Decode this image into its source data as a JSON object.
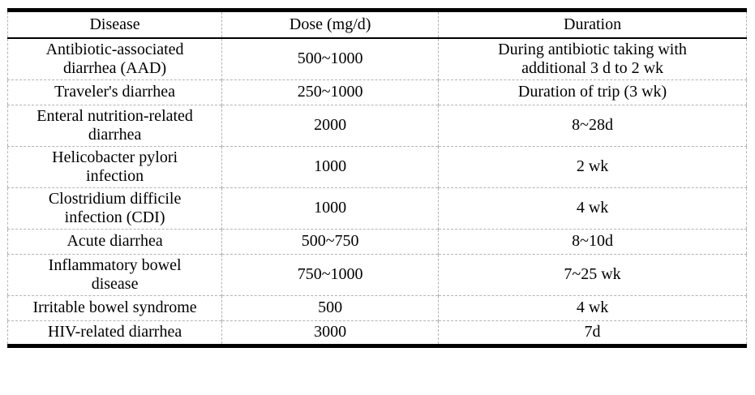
{
  "table": {
    "columns": [
      {
        "key": "disease",
        "label": "Disease"
      },
      {
        "key": "dose",
        "label": "Dose (mg/d)"
      },
      {
        "key": "duration",
        "label": "Duration"
      }
    ],
    "rows": [
      {
        "disease": "Antibiotic-associated\ndiarrhea (AAD)",
        "dose": "500~1000",
        "duration": "During antibiotic taking with\nadditional 3 d to 2 wk"
      },
      {
        "disease": "Traveler's diarrhea",
        "dose": "250~1000",
        "duration": "Duration of trip (3 wk)"
      },
      {
        "disease": "Enteral nutrition-related\ndiarrhea",
        "dose": "2000",
        "duration": "8~28d"
      },
      {
        "disease": "Helicobacter pylori\ninfection",
        "dose": "1000",
        "duration": "2 wk"
      },
      {
        "disease": "Clostridium difficile\ninfection (CDI)",
        "dose": "1000",
        "duration": "4 wk"
      },
      {
        "disease": "Acute diarrhea",
        "dose": "500~750",
        "duration": "8~10d"
      },
      {
        "disease": "Inflammatory bowel\ndisease",
        "dose": "750~1000",
        "duration": "7~25 wk"
      },
      {
        "disease": "Irritable bowel syndrome",
        "dose": "500",
        "duration": "4 wk"
      },
      {
        "disease": "HIV-related diarrhea",
        "dose": "3000",
        "duration": "7d"
      }
    ],
    "style": {
      "rule_color": "#000000",
      "grid_color": "#b4b4b4",
      "text_color": "#000000",
      "background": "#ffffff"
    }
  }
}
